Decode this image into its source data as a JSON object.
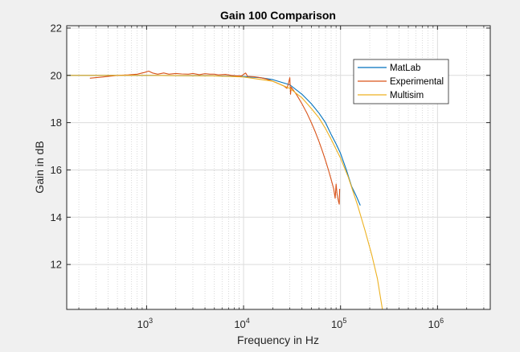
{
  "chart_data": {
    "type": "line",
    "title": "Gain 100 Comparison",
    "xlabel": "Frequency in Hz",
    "ylabel": "Gain in dB",
    "xscale": "log",
    "xlim": [
      150,
      3500000
    ],
    "ylim": [
      10.1,
      22.1
    ],
    "x_ticks": [
      {
        "value": 1000,
        "base": "10",
        "exp": "3"
      },
      {
        "value": 10000,
        "base": "10",
        "exp": "4"
      },
      {
        "value": 100000,
        "base": "10",
        "exp": "5"
      },
      {
        "value": 1000000,
        "base": "10",
        "exp": "6"
      }
    ],
    "y_ticks": [
      {
        "value": 12,
        "label": "12"
      },
      {
        "value": 14,
        "label": "14"
      },
      {
        "value": 16,
        "label": "16"
      },
      {
        "value": 18,
        "label": "18"
      },
      {
        "value": 20,
        "label": "20"
      },
      {
        "value": 22,
        "label": "22"
      }
    ],
    "grid": true,
    "minor_grid": true,
    "legend_position": "top-right",
    "series": [
      {
        "name": "MatLab",
        "color": "#0072bd",
        "points": [
          [
            150,
            20.0
          ],
          [
            1000,
            20.0
          ],
          [
            5000,
            19.98
          ],
          [
            10000,
            19.95
          ],
          [
            15000,
            19.9
          ],
          [
            20000,
            19.82
          ],
          [
            30000,
            19.6
          ],
          [
            40000,
            19.2
          ],
          [
            50000,
            18.8
          ],
          [
            60000,
            18.4
          ],
          [
            70000,
            18.0
          ],
          [
            80000,
            17.5
          ],
          [
            90000,
            17.1
          ],
          [
            100000,
            16.7
          ],
          [
            115000,
            16.0
          ],
          [
            130000,
            15.3
          ],
          [
            145000,
            14.9
          ],
          [
            160000,
            14.5
          ]
        ]
      },
      {
        "name": "Experimental",
        "color": "#d95319",
        "points": [
          [
            260,
            19.88
          ],
          [
            350,
            19.93
          ],
          [
            500,
            20.0
          ],
          [
            650,
            20.02
          ],
          [
            800,
            20.05
          ],
          [
            950,
            20.12
          ],
          [
            1050,
            20.18
          ],
          [
            1150,
            20.1
          ],
          [
            1300,
            20.05
          ],
          [
            1500,
            20.1
          ],
          [
            1700,
            20.05
          ],
          [
            2000,
            20.08
          ],
          [
            2300,
            20.06
          ],
          [
            2700,
            20.05
          ],
          [
            3000,
            20.08
          ],
          [
            3500,
            20.03
          ],
          [
            4000,
            20.07
          ],
          [
            4500,
            20.05
          ],
          [
            5000,
            20.05
          ],
          [
            5500,
            20.02
          ],
          [
            6500,
            20.04
          ],
          [
            7500,
            20.0
          ],
          [
            8500,
            19.98
          ],
          [
            9500,
            19.98
          ],
          [
            10500,
            20.1
          ],
          [
            11000,
            19.96
          ],
          [
            13000,
            19.94
          ],
          [
            15000,
            19.9
          ],
          [
            17000,
            19.85
          ],
          [
            20000,
            19.75
          ],
          [
            23000,
            19.65
          ],
          [
            26000,
            19.55
          ],
          [
            28000,
            19.45
          ],
          [
            29000,
            19.65
          ],
          [
            30000,
            19.9
          ],
          [
            30500,
            19.2
          ],
          [
            31000,
            19.5
          ],
          [
            35000,
            19.2
          ],
          [
            40000,
            18.8
          ],
          [
            45000,
            18.4
          ],
          [
            50000,
            18.0
          ],
          [
            55000,
            17.6
          ],
          [
            60000,
            17.2
          ],
          [
            65000,
            16.8
          ],
          [
            70000,
            16.4
          ],
          [
            75000,
            16.0
          ],
          [
            80000,
            15.6
          ],
          [
            85000,
            15.2
          ],
          [
            88000,
            14.8
          ],
          [
            90000,
            15.4
          ],
          [
            92000,
            15.0
          ],
          [
            95000,
            14.7
          ],
          [
            97000,
            14.55
          ],
          [
            98000,
            15.2
          ]
        ]
      },
      {
        "name": "Multisim",
        "color": "#edb120",
        "points": [
          [
            150,
            20.0
          ],
          [
            1000,
            20.0
          ],
          [
            5000,
            19.98
          ],
          [
            10000,
            19.93
          ],
          [
            20000,
            19.75
          ],
          [
            30000,
            19.45
          ],
          [
            40000,
            19.05
          ],
          [
            50000,
            18.6
          ],
          [
            60000,
            18.2
          ],
          [
            70000,
            17.75
          ],
          [
            80000,
            17.3
          ],
          [
            100000,
            16.5
          ],
          [
            120000,
            15.7
          ],
          [
            150000,
            14.5
          ],
          [
            180000,
            13.4
          ],
          [
            210000,
            12.4
          ],
          [
            240000,
            11.4
          ],
          [
            270000,
            10.1
          ]
        ]
      }
    ]
  }
}
